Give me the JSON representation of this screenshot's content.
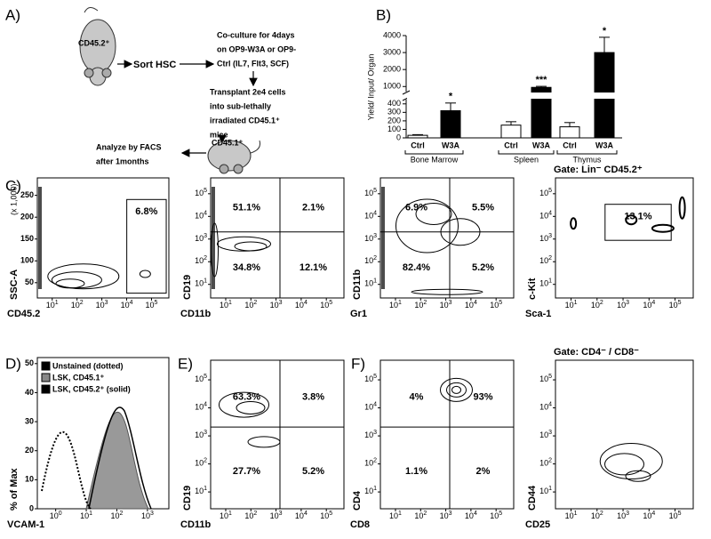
{
  "panel_labels": [
    "A)",
    "B)",
    "C)",
    "D)",
    "E)",
    "F)"
  ],
  "schematic": {
    "donor": "CD45.2⁺",
    "sort": "Sort HSC",
    "coculture": [
      "Co-culture for 4days",
      "on OP9-W3A or OP9-",
      "Ctrl (IL7, Flt3, SCF)"
    ],
    "transplant": [
      "Transplant 2e4 cells",
      "into sub-lethally",
      "irradiated CD45.1⁺",
      "mice"
    ],
    "recipient": "CD45.1⁺",
    "analyze": [
      "Analyze by FACS",
      "after 1months"
    ]
  },
  "chart_data": {
    "type": "bar",
    "y_label": "Yield/ Input/ Organ",
    "categories": [
      "Ctrl",
      "W3A",
      "Ctrl",
      "W3A",
      "Ctrl",
      "W3A"
    ],
    "groups": [
      "Bone Marrow",
      "Spleen",
      "Thymus"
    ],
    "values": [
      30,
      320,
      150,
      950,
      130,
      3000
    ],
    "errors": [
      8,
      90,
      40,
      60,
      50,
      900
    ],
    "colors": [
      "#ffffff",
      "#000000",
      "#ffffff",
      "#000000",
      "#ffffff",
      "#000000"
    ],
    "annotations": [
      {
        "index": 1,
        "text": "*"
      },
      {
        "index": 3,
        "text": "***"
      },
      {
        "index": 5,
        "text": "*"
      }
    ],
    "ylim": [
      0,
      4000
    ],
    "axis_break": [
      450,
      700
    ],
    "yticks": [
      0,
      100,
      200,
      300,
      400,
      1000,
      2000,
      3000,
      4000
    ]
  },
  "log_tick": {
    "base": "10"
  },
  "plots": [
    {
      "y_label": "SSC-A",
      "x_label": "CD45.2",
      "y_ticks": [
        "50",
        "100",
        "150",
        "200",
        "250"
      ],
      "y_note": "(x 1,000)",
      "x_ticks": [
        "1",
        "2",
        "3",
        "4",
        "5"
      ],
      "gate": "6.8%"
    },
    {
      "y_label": "CD19",
      "x_label": "CD11b",
      "y_log": [
        "1",
        "2",
        "3",
        "4",
        "5"
      ],
      "x_ticks": [
        "1",
        "2",
        "3",
        "4",
        "5"
      ],
      "quadrants": [
        "51.1%",
        "2.1%",
        "34.8%",
        "12.1%"
      ]
    },
    {
      "y_label": "CD11b",
      "x_label": "Gr1",
      "y_log": [
        "1",
        "2",
        "3",
        "4",
        "5"
      ],
      "x_ticks": [
        "1",
        "2",
        "3",
        "4",
        "5"
      ],
      "quadrants": [
        "6.9%",
        "5.5%",
        "82.4%",
        "5.2%"
      ]
    },
    {
      "title": "Gate: Lin⁻ CD45.2⁺",
      "y_label": "c-Kit",
      "x_label": "Sca-1",
      "y_log": [
        "1",
        "2",
        "3",
        "4",
        "5"
      ],
      "x_ticks": [
        "1",
        "2",
        "3",
        "4",
        "5"
      ],
      "gate": "13.1%"
    },
    {
      "y_label": "% of Max",
      "x_label": "VCAM-1",
      "y_ticks": [
        "0",
        "10",
        "20",
        "30",
        "40",
        "50"
      ],
      "x_ticks": [
        "0",
        "1",
        "2",
        "3"
      ],
      "legend": [
        "Unstained (dotted)",
        "LSK, CD45.1⁺",
        "LSK, CD45.2⁺ (solid)"
      ]
    },
    {
      "y_label": "CD19",
      "x_label": "CD11b",
      "y_log": [
        "1",
        "2",
        "3",
        "4",
        "5"
      ],
      "x_ticks": [
        "1",
        "2",
        "3",
        "4",
        "5"
      ],
      "quadrants": [
        "63.3%",
        "3.8%",
        "27.7%",
        "5.2%"
      ]
    },
    {
      "y_label": "CD4",
      "x_label": "CD8",
      "y_log": [
        "1",
        "2",
        "3",
        "4",
        "5"
      ],
      "x_ticks": [
        "1",
        "2",
        "3",
        "4",
        "5"
      ],
      "quadrants": [
        "4%",
        "93%",
        "1.1%",
        "2%"
      ]
    },
    {
      "title": "Gate: CD4⁻ / CD8⁻",
      "y_label": "CD44",
      "x_label": "CD25",
      "y_log": [
        "1",
        "2",
        "3",
        "4",
        "5"
      ],
      "x_ticks": [
        "1",
        "2",
        "3",
        "4",
        "5"
      ]
    }
  ]
}
